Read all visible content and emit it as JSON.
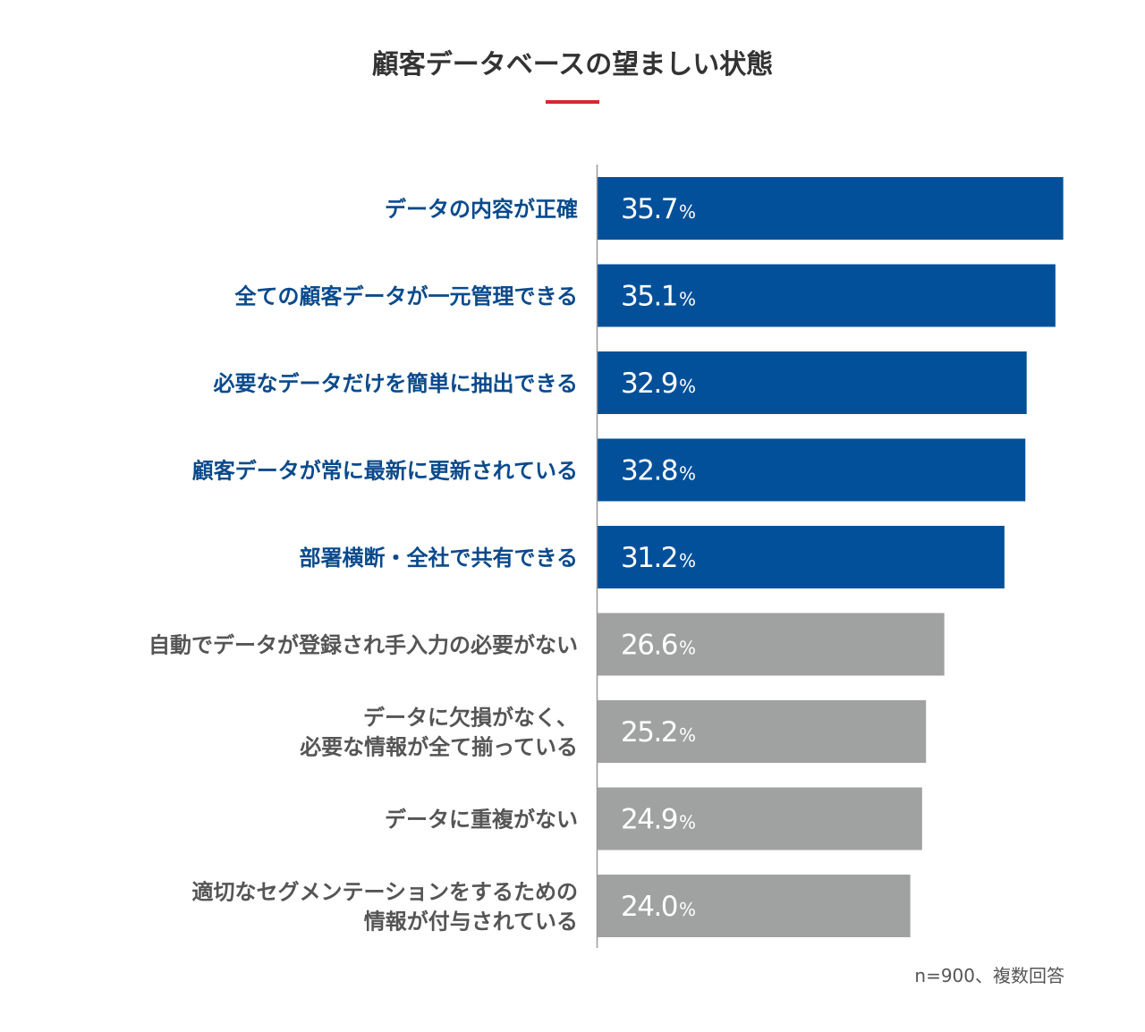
{
  "chart_data": {
    "type": "bar",
    "orientation": "horizontal",
    "title": "顧客データベースの望ましい状態",
    "categories": [
      [
        "データの内容が正確"
      ],
      [
        "全ての顧客データが一元管理できる"
      ],
      [
        "必要なデータだけを簡単に抽出できる"
      ],
      [
        "顧客データが常に最新に更新されている"
      ],
      [
        "部署横断・全社で共有できる"
      ],
      [
        "自動でデータが登録され手入力の必要がない"
      ],
      [
        "データに欠損がなく、",
        "必要な情報が全て揃っている"
      ],
      [
        "データに重複がない"
      ],
      [
        "適切なセグメンテーションをするための",
        "情報が付与されている"
      ]
    ],
    "values": [
      35.7,
      35.1,
      32.9,
      32.8,
      31.2,
      26.6,
      25.2,
      24.9,
      24.0
    ],
    "value_labels": [
      "35.7",
      "35.1",
      "32.9",
      "32.8",
      "31.2",
      "26.6",
      "25.2",
      "24.9",
      "24.0"
    ],
    "unit": "%",
    "highlight_count": 5,
    "xlim": [
      0,
      36
    ],
    "grid": false,
    "legend": "none",
    "note": "n=900、複数回答"
  },
  "colors": {
    "highlight_bar": "#02509a",
    "normal_bar": "#a0a1a1",
    "highlight_label": "#0a4a8c",
    "normal_label": "#555555",
    "title_accent": "#d7282f",
    "axis": "#999999"
  }
}
